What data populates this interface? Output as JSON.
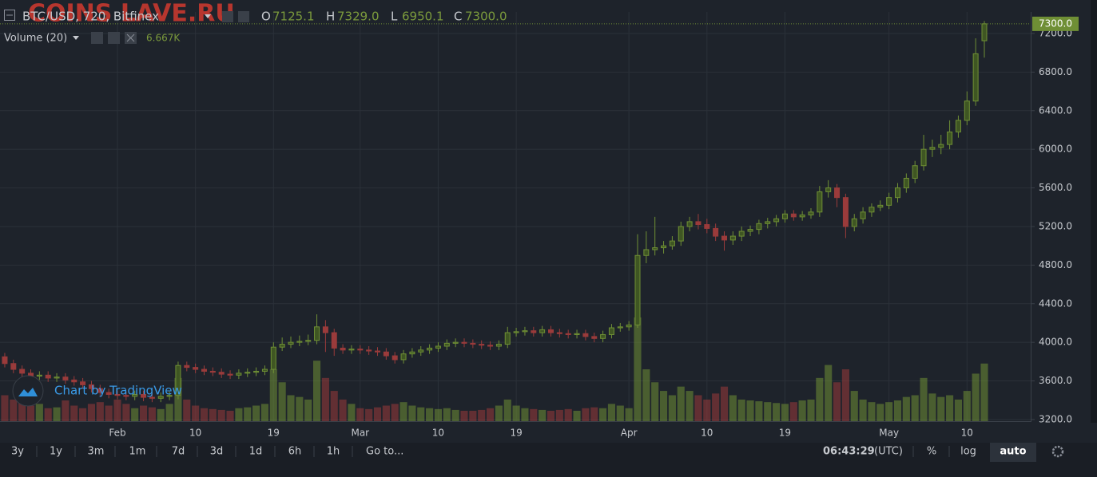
{
  "chart_data": {
    "type": "candlestick",
    "watermark": "COINS LAVE.RU",
    "attribution": "Chart by TradingView",
    "series": [
      {
        "name": "BTC/USD, 720, Bitfinex",
        "up_color": "#6f8f35",
        "down_color": "#9a3b3b",
        "open": [
          3850,
          3780,
          3720,
          3680,
          3650,
          3660,
          3630,
          3640,
          3610,
          3590,
          3560,
          3520,
          3480,
          3460,
          3450,
          3440,
          3460,
          3430,
          3420,
          3440,
          3450,
          3760,
          3740,
          3720,
          3700,
          3690,
          3670,
          3660,
          3680,
          3690,
          3700,
          3720,
          3950,
          3980,
          4000,
          4010,
          4020,
          4160,
          4100,
          3940,
          3920,
          3930,
          3920,
          3910,
          3900,
          3860,
          3820,
          3880,
          3900,
          3920,
          3940,
          3960,
          3990,
          4000,
          3990,
          3980,
          3970,
          3960,
          3980,
          4100,
          4110,
          4120,
          4100,
          4130,
          4100,
          4090,
          4080,
          4090,
          4060,
          4040,
          4080,
          4150,
          4160,
          4180,
          4900,
          4960,
          4980,
          5000,
          5050,
          5200,
          5250,
          5220,
          5180,
          5100,
          5060,
          5100,
          5150,
          5170,
          5230,
          5250,
          5280,
          5330,
          5300,
          5320,
          5350,
          5560,
          5600,
          5500,
          5200,
          5280,
          5350,
          5400,
          5420,
          5500,
          5600,
          5700,
          5830,
          6000,
          6020,
          6050,
          6180,
          6300,
          6500,
          7125.1
        ],
        "high": [
          3890,
          3820,
          3760,
          3720,
          3700,
          3700,
          3680,
          3680,
          3650,
          3630,
          3600,
          3560,
          3520,
          3500,
          3490,
          3500,
          3500,
          3470,
          3480,
          3490,
          3800,
          3800,
          3780,
          3760,
          3740,
          3730,
          3710,
          3720,
          3730,
          3740,
          3760,
          4000,
          4050,
          4060,
          4070,
          4080,
          4290,
          4230,
          4140,
          3980,
          3970,
          3970,
          3960,
          3950,
          3940,
          3900,
          3920,
          3940,
          3960,
          3980,
          4000,
          4030,
          4040,
          4040,
          4030,
          4020,
          4010,
          4020,
          4160,
          4150,
          4160,
          4160,
          4170,
          4170,
          4140,
          4130,
          4130,
          4130,
          4100,
          4120,
          4190,
          4200,
          4220,
          5120,
          5150,
          5300,
          5050,
          5100,
          5250,
          5300,
          5330,
          5280,
          5230,
          5150,
          5150,
          5200,
          5210,
          5270,
          5290,
          5320,
          5370,
          5370,
          5360,
          5390,
          5620,
          5680,
          5640,
          5540,
          5330,
          5400,
          5440,
          5470,
          5550,
          5650,
          5750,
          5880,
          6150,
          6100,
          6150,
          6300,
          6350,
          6600,
          7150,
          7329
        ],
        "low": [
          3740,
          3680,
          3640,
          3610,
          3610,
          3590,
          3590,
          3570,
          3550,
          3520,
          3480,
          3440,
          3420,
          3410,
          3400,
          3400,
          3390,
          3380,
          3380,
          3400,
          3410,
          3700,
          3680,
          3660,
          3650,
          3630,
          3620,
          3620,
          3640,
          3650,
          3660,
          3680,
          3910,
          3940,
          3960,
          3970,
          3980,
          3900,
          3860,
          3880,
          3880,
          3880,
          3870,
          3860,
          3820,
          3780,
          3780,
          3840,
          3860,
          3880,
          3900,
          3920,
          3950,
          3950,
          3940,
          3930,
          3920,
          3920,
          3940,
          4060,
          4070,
          4060,
          4060,
          4060,
          4050,
          4040,
          4040,
          4020,
          4000,
          4000,
          4040,
          4110,
          4120,
          4150,
          4820,
          4900,
          4920,
          4960,
          5000,
          5150,
          5170,
          5130,
          5050,
          4950,
          5010,
          5050,
          5100,
          5120,
          5180,
          5200,
          5240,
          5260,
          5260,
          5280,
          5300,
          5500,
          5400,
          5080,
          5150,
          5230,
          5300,
          5360,
          5380,
          5450,
          5550,
          5650,
          5780,
          5920,
          5950,
          6000,
          6120,
          6250,
          6450,
          6950.1
        ],
        "close": [
          3780,
          3720,
          3680,
          3650,
          3660,
          3630,
          3640,
          3610,
          3590,
          3560,
          3520,
          3480,
          3460,
          3450,
          3440,
          3460,
          3430,
          3420,
          3440,
          3450,
          3760,
          3740,
          3720,
          3700,
          3690,
          3670,
          3660,
          3680,
          3690,
          3700,
          3720,
          3950,
          3980,
          4000,
          4010,
          4020,
          4160,
          4100,
          3940,
          3920,
          3930,
          3920,
          3910,
          3900,
          3860,
          3820,
          3880,
          3900,
          3920,
          3940,
          3960,
          3990,
          4000,
          3990,
          3980,
          3970,
          3960,
          3980,
          4100,
          4110,
          4120,
          4100,
          4130,
          4100,
          4090,
          4080,
          4090,
          4060,
          4040,
          4080,
          4150,
          4160,
          4180,
          4900,
          4960,
          4980,
          5000,
          5050,
          5200,
          5250,
          5220,
          5180,
          5100,
          5060,
          5100,
          5150,
          5170,
          5230,
          5250,
          5280,
          5330,
          5300,
          5320,
          5350,
          5560,
          5600,
          5500,
          5200,
          5280,
          5350,
          5400,
          5420,
          5500,
          5600,
          5700,
          5830,
          6000,
          6020,
          6050,
          6180,
          6300,
          6500,
          6990,
          7300
        ]
      }
    ],
    "ohlc": [
      {
        "key": "O",
        "value": 7125.1
      },
      {
        "key": "H",
        "value": {
          "value": 7329,
          "label": "7329.0"
        }
      },
      {
        "key": "L",
        "value": 6950.1
      },
      {
        "key": "C",
        "value": {
          "value": 7300,
          "label": "7300.0"
        }
      }
    ],
    "last_price": {
      "value": 7300,
      "label": "7300.0"
    },
    "volume": {
      "name": "Volume (20)",
      "last": {
        "value": 6667,
        "label": "6.667K"
      },
      "values": [
        3000,
        2500,
        2200,
        1800,
        2000,
        1500,
        1600,
        2400,
        1800,
        1500,
        2000,
        2200,
        1800,
        2500,
        2000,
        1500,
        1800,
        1600,
        1400,
        2000,
        5000,
        2500,
        1800,
        1500,
        1400,
        1300,
        1200,
        1500,
        1600,
        1800,
        2000,
        6000,
        4500,
        3000,
        2800,
        2500,
        7000,
        5000,
        3500,
        2500,
        2000,
        1500,
        1400,
        1600,
        1800,
        2000,
        2200,
        1800,
        1600,
        1500,
        1400,
        1500,
        1300,
        1200,
        1200,
        1300,
        1500,
        1800,
        2500,
        1800,
        1500,
        1400,
        1300,
        1200,
        1300,
        1400,
        1200,
        1500,
        1600,
        1500,
        2000,
        1800,
        1500,
        12000,
        6000,
        4500,
        3500,
        3000,
        4000,
        3500,
        3000,
        2500,
        3200,
        4000,
        3000,
        2500,
        2400,
        2300,
        2200,
        2100,
        2000,
        2200,
        2400,
        2500,
        5000,
        6500,
        4500,
        6000,
        3500,
        2500,
        2200,
        2000,
        2200,
        2400,
        2800,
        3000,
        5000,
        3200,
        2800,
        3000,
        2500,
        3500,
        5500,
        6667
      ]
    },
    "categories": [
      null,
      null,
      null,
      null,
      null,
      null,
      null,
      null,
      null,
      null,
      null,
      null,
      null,
      "Feb",
      null,
      null,
      null,
      null,
      null,
      null,
      null,
      null,
      "10",
      null,
      null,
      null,
      null,
      null,
      null,
      null,
      null,
      "19",
      null,
      null,
      null,
      null,
      null,
      null,
      null,
      null,
      null,
      "Mar",
      null,
      null,
      null,
      null,
      null,
      null,
      null,
      null,
      "10",
      null,
      null,
      null,
      null,
      null,
      null,
      null,
      null,
      "19",
      null,
      null,
      null,
      null,
      null,
      null,
      null,
      null,
      null,
      null,
      null,
      null,
      "Apr",
      null,
      null,
      null,
      null,
      null,
      null,
      null,
      null,
      "10",
      null,
      null,
      null,
      null,
      null,
      null,
      null,
      null,
      "19",
      null,
      null,
      null,
      null,
      null,
      null,
      null,
      null,
      null,
      null,
      null,
      "May",
      null,
      null,
      null,
      null,
      null,
      null,
      null,
      null,
      "10",
      null,
      null
    ],
    "ylim": [
      3183,
      7547
    ],
    "yticks": [
      {
        "value": 3200,
        "label": "3200.0"
      },
      {
        "value": 3600,
        "label": "3600.0"
      },
      {
        "value": 4000,
        "label": "4000.0"
      },
      {
        "value": 4400,
        "label": "4400.0"
      },
      {
        "value": 4800,
        "label": "4800.0"
      },
      {
        "value": 5200,
        "label": "5200.0"
      },
      {
        "value": 5600,
        "label": "5600.0"
      },
      {
        "value": 6000,
        "label": "6000.0"
      },
      {
        "value": 6400,
        "label": "6400.0"
      },
      {
        "value": 6800,
        "label": "6800.0"
      },
      {
        "value": 7200,
        "label": "7200.0"
      }
    ],
    "grid": true,
    "toolbar": {
      "ranges": [
        "3y",
        "1y",
        "3m",
        "1m",
        "7d",
        "3d",
        "1d",
        "6h",
        "1h"
      ],
      "goto": "Go to...",
      "time": "06:43:29",
      "timezone": "(UTC)",
      "percent": "%",
      "log": "log",
      "auto": "auto"
    }
  }
}
